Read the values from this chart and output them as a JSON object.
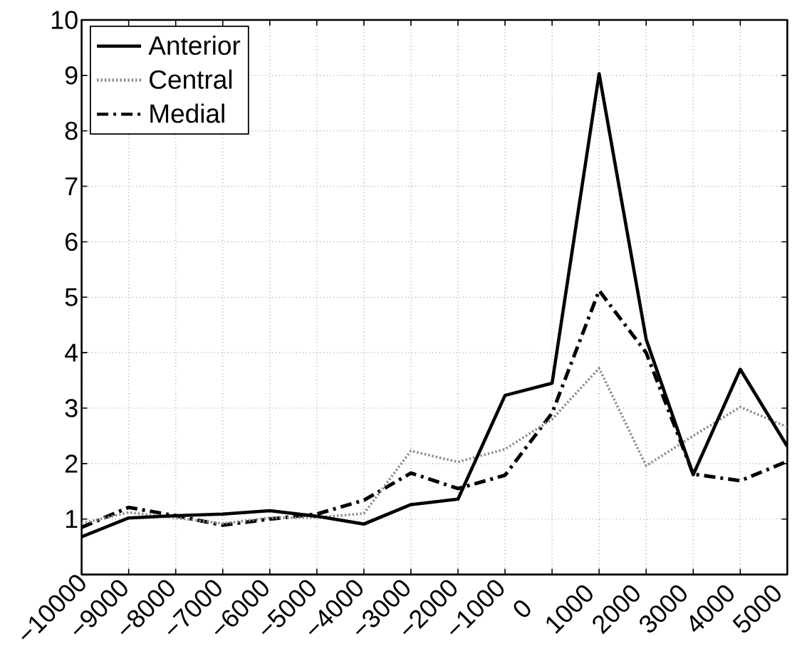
{
  "chart_data": {
    "type": "line",
    "x": [
      -10000,
      -9000,
      -8000,
      -7000,
      -6000,
      -5000,
      -4000,
      -3000,
      -2000,
      -1000,
      0,
      1000,
      2000,
      3000,
      4000,
      5000
    ],
    "series": [
      {
        "name": "Anterior",
        "color": "#000000",
        "line_style": "solid",
        "values": [
          0.68,
          1.02,
          1.06,
          1.09,
          1.15,
          1.05,
          0.91,
          1.26,
          1.36,
          3.23,
          3.45,
          9.03,
          4.24,
          1.8,
          3.7,
          2.31
        ]
      },
      {
        "name": "Central",
        "color": "#8c8c8c",
        "line_style": "dotted",
        "values": [
          0.92,
          1.12,
          1.02,
          0.92,
          1.02,
          1.03,
          1.1,
          2.23,
          2.03,
          2.26,
          2.8,
          3.72,
          1.96,
          2.5,
          3.02,
          2.66
        ]
      },
      {
        "name": "Medial",
        "color": "#000000",
        "line_style": "dashdot",
        "values": [
          0.85,
          1.21,
          1.06,
          0.89,
          1.0,
          1.09,
          1.34,
          1.83,
          1.55,
          1.79,
          2.91,
          5.12,
          4.0,
          1.81,
          1.69,
          2.04
        ]
      }
    ],
    "xlim": [
      -10000,
      5000
    ],
    "ylim": [
      0,
      10
    ],
    "xticks": [
      {
        "value": -10000,
        "label": "−10000"
      },
      {
        "value": -9000,
        "label": "−9000"
      },
      {
        "value": -8000,
        "label": "−8000"
      },
      {
        "value": -7000,
        "label": "−7000"
      },
      {
        "value": -6000,
        "label": "−6000"
      },
      {
        "value": -5000,
        "label": "−5000"
      },
      {
        "value": -4000,
        "label": "−4000"
      },
      {
        "value": -3000,
        "label": "−3000"
      },
      {
        "value": -2000,
        "label": "−2000"
      },
      {
        "value": -1000,
        "label": "−1000"
      },
      0,
      1000,
      2000,
      3000,
      4000,
      5000
    ],
    "yticks": [
      1,
      2,
      3,
      4,
      5,
      6,
      7,
      8,
      9,
      10
    ],
    "grid": true,
    "legend": "top left",
    "marker": "none"
  }
}
